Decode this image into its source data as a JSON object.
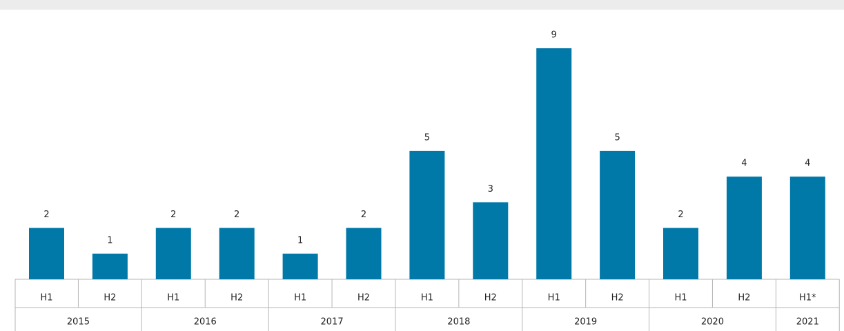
{
  "chart_data": {
    "type": "bar",
    "color": "#0079a9",
    "groups": [
      {
        "name": "2015",
        "categories": [
          "H1",
          "H2"
        ]
      },
      {
        "name": "2016",
        "categories": [
          "H1",
          "H2"
        ]
      },
      {
        "name": "2017",
        "categories": [
          "H1",
          "H2"
        ]
      },
      {
        "name": "2018",
        "categories": [
          "H1",
          "H2"
        ]
      },
      {
        "name": "2019",
        "categories": [
          "H1",
          "H2"
        ]
      },
      {
        "name": "2020",
        "categories": [
          "H1",
          "H2"
        ]
      },
      {
        "name": "2021",
        "categories": [
          "H1*"
        ]
      }
    ],
    "values": [
      2,
      1,
      2,
      2,
      1,
      2,
      5,
      3,
      9,
      5,
      2,
      4,
      4
    ]
  }
}
